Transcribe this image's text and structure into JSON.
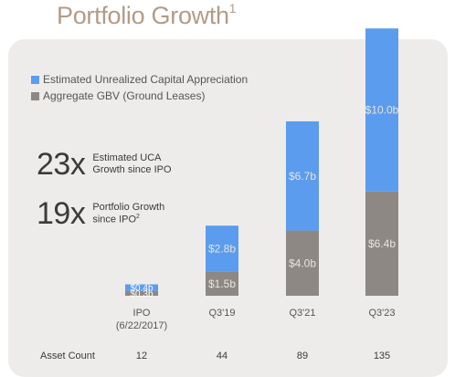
{
  "title": "Portfolio Growth",
  "title_superscript": "1",
  "stats": [
    {
      "value": "23x",
      "line1": "Estimated UCA",
      "line2": "Growth since IPO",
      "superscript": ""
    },
    {
      "value": "19x",
      "line1": "Portfolio Growth",
      "line2": "since IPO",
      "superscript": "2"
    }
  ],
  "colors": {
    "uca": "#5b9cef",
    "gbv": "#8d8884",
    "title": "#b39b86",
    "panel": "#eeecea",
    "label_light": "#e9e4dc"
  },
  "chart_data": {
    "type": "bar",
    "stacked": true,
    "categories": [
      "IPO (6/22/2017)",
      "Q3'19",
      "Q3'21",
      "Q3'23"
    ],
    "category_lines": [
      [
        "IPO",
        "(6/22/2017)"
      ],
      [
        "Q3'19"
      ],
      [
        "Q3'21"
      ],
      [
        "Q3'23"
      ]
    ],
    "series": [
      {
        "name": "Aggregate GBV (Ground Leases)",
        "values": [
          0.3,
          1.5,
          4.0,
          6.4
        ],
        "labels": [
          "$0.3b",
          "$1.5b",
          "$4.0b",
          "$6.4b"
        ],
        "color": "#8d8884"
      },
      {
        "name": "Estimated Unrealized Capital Appreciation",
        "values": [
          0.4,
          2.8,
          6.7,
          10.0
        ],
        "labels": [
          "$0.4b",
          "$2.8b",
          "$6.7b",
          "$10.0b"
        ],
        "color": "#5b9cef"
      }
    ],
    "legend_order": [
      "Estimated Unrealized Capital Appreciation",
      "Aggregate GBV (Ground Leases)"
    ],
    "unit": "$b",
    "ylim": [
      0,
      16.8
    ],
    "legend_position": "top-left",
    "grid": false,
    "asset_count_label": "Asset Count",
    "asset_counts": [
      "12",
      "44",
      "89",
      "135"
    ]
  }
}
